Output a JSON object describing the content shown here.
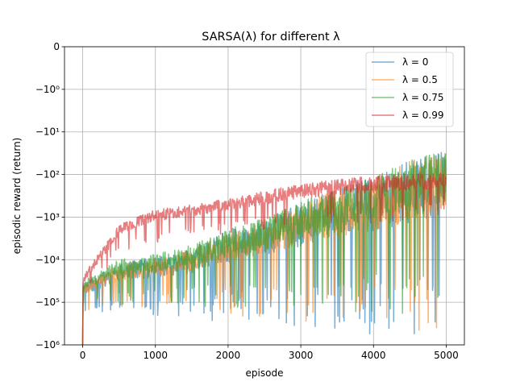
{
  "chart_data": {
    "type": "line",
    "title": "SARSA(λ) for different λ",
    "xlabel": "episode",
    "ylabel": "episodic reward (return)",
    "xlim": [
      -250,
      5250
    ],
    "ylim": [
      -1000000,
      0
    ],
    "yscale": "symlog",
    "grid": true,
    "legend_position": "upper right",
    "x_ticks": [
      {
        "value": 0,
        "label": "0"
      },
      {
        "value": 1000,
        "label": "1000"
      },
      {
        "value": 2000,
        "label": "2000"
      },
      {
        "value": 3000,
        "label": "3000"
      },
      {
        "value": 4000,
        "label": "4000"
      },
      {
        "value": 5000,
        "label": "5000"
      }
    ],
    "y_ticks": [
      {
        "value": 0,
        "label": "0"
      },
      {
        "value": -1,
        "label": "−10⁰"
      },
      {
        "value": -10,
        "label": "−10¹"
      },
      {
        "value": -100,
        "label": "−10²"
      },
      {
        "value": -1000,
        "label": "−10³"
      },
      {
        "value": -10000,
        "label": "−10⁴"
      },
      {
        "value": -100000,
        "label": "−10⁵"
      },
      {
        "value": -1000000,
        "label": "−10⁶"
      }
    ],
    "x": [
      0,
      500,
      1000,
      1500,
      2000,
      2500,
      3000,
      3500,
      4000,
      4500,
      5000
    ],
    "series": [
      {
        "name": "λ = 0",
        "color": "#1f77b4",
        "typical": [
          -50000,
          -20000,
          -15000,
          -10000,
          -5000,
          -3000,
          -1500,
          -800,
          -500,
          -250,
          -150
        ],
        "worst": [
          -200000,
          -200000,
          -200000,
          -300000,
          -300000,
          -300000,
          -400000,
          -500000,
          -600000,
          -700000,
          -500000
        ]
      },
      {
        "name": "λ = 0.5",
        "color": "#ff7f0e",
        "typical": [
          -50000,
          -20000,
          -15000,
          -10000,
          -5000,
          -3000,
          -1500,
          -800,
          -500,
          -250,
          -150
        ],
        "worst": [
          -150000,
          -150000,
          -150000,
          -200000,
          -200000,
          -250000,
          -300000,
          -400000,
          -600000,
          -700000,
          -400000
        ]
      },
      {
        "name": "λ = 0.75",
        "color": "#2ca02c",
        "typical": [
          -40000,
          -15000,
          -12000,
          -8000,
          -4000,
          -2500,
          -1200,
          -700,
          -400,
          -200,
          -120
        ],
        "worst": [
          -120000,
          -120000,
          -120000,
          -120000,
          -150000,
          -150000,
          -150000,
          -200000,
          -200000,
          -200000,
          -150000
        ]
      },
      {
        "name": "λ = 0.99",
        "color": "#d62728",
        "typical": [
          -30000,
          -2000,
          -900,
          -700,
          -500,
          -350,
          -250,
          -200,
          -170,
          -150,
          -140
        ],
        "worst": [
          -80000,
          -8000,
          -4000,
          -3000,
          -2500,
          -2000,
          -1800,
          -1500,
          -1500,
          -1200,
          -1000
        ]
      }
    ]
  }
}
